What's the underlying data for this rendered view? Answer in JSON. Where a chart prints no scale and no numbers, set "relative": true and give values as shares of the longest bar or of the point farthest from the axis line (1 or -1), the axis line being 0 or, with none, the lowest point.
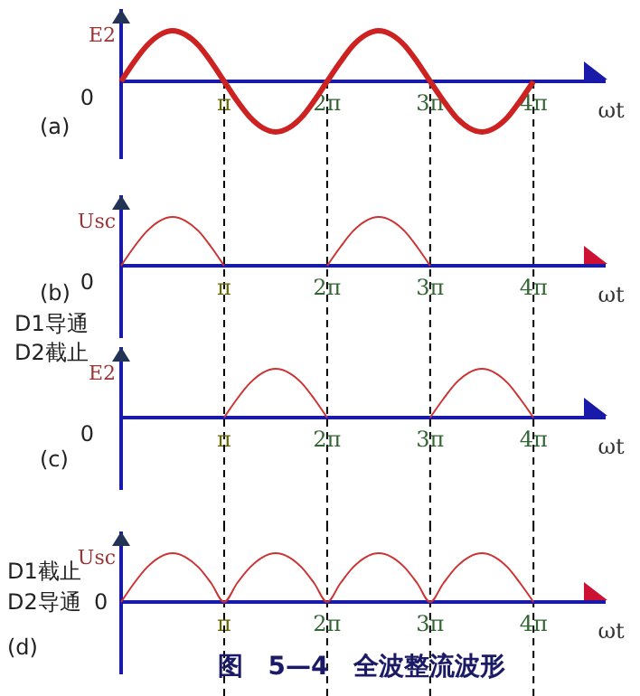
{
  "chart_data": [
    {
      "type": "line",
      "relative": true,
      "ylabel": "E2",
      "xlabel": "ωt",
      "xlim": [
        0,
        14.77
      ],
      "xticks": [
        {
          "value": 3.14,
          "label": "π"
        },
        {
          "value": 6.28,
          "label": "2π"
        },
        {
          "value": 9.42,
          "label": "3π"
        },
        {
          "value": 12.57,
          "label": "4π"
        }
      ],
      "x": [
        0,
        0.39,
        0.79,
        1.18,
        1.57,
        1.96,
        2.36,
        2.75,
        3.14,
        3.53,
        3.93,
        4.32,
        4.71,
        5.11,
        5.5,
        5.89,
        6.28,
        6.68,
        7.07,
        7.46,
        7.85,
        8.25,
        8.64,
        9.03,
        9.42,
        9.82,
        10.21,
        10.6,
        11.0,
        11.39,
        11.78,
        12.17,
        12.57
      ],
      "series": [
        {
          "color": "#cc2222",
          "values": [
            0,
            0.38,
            0.71,
            0.92,
            1,
            0.92,
            0.71,
            0.38,
            0,
            -0.38,
            -0.71,
            -0.92,
            -1,
            -0.92,
            -0.71,
            -0.38,
            0,
            0.38,
            0.71,
            0.92,
            1,
            0.92,
            0.71,
            0.38,
            0,
            -0.38,
            -0.71,
            -0.92,
            -1,
            -0.92,
            -0.71,
            -0.38,
            0
          ]
        }
      ],
      "annotations": [
        "0",
        "(a)"
      ],
      "ref_lines": [
        {
          "axis": "x",
          "value": 3.14,
          "line_style": "dashed"
        },
        {
          "axis": "x",
          "value": 6.28,
          "line_style": "dashed"
        },
        {
          "axis": "x",
          "value": 9.42,
          "line_style": "dashed"
        },
        {
          "axis": "x",
          "value": 12.57,
          "line_style": "dashed"
        }
      ]
    },
    {
      "type": "line",
      "relative": true,
      "ylabel": "Usc",
      "xlabel": "ωt",
      "xlim": [
        0,
        14.77
      ],
      "xticks": [
        {
          "value": 3.14,
          "label": "π"
        },
        {
          "value": 6.28,
          "label": "2π"
        },
        {
          "value": 9.42,
          "label": "3π"
        },
        {
          "value": 12.57,
          "label": "4π"
        }
      ],
      "series": [
        {
          "color": "#cc3333",
          "x": [
            0,
            0.39,
            0.79,
            1.18,
            1.57,
            1.96,
            2.36,
            2.75,
            3.14
          ],
          "values": [
            0,
            0.38,
            0.71,
            0.92,
            1,
            0.92,
            0.71,
            0.38,
            0
          ]
        },
        {
          "color": "#cc3333",
          "x": [
            6.28,
            6.68,
            7.07,
            7.46,
            7.85,
            8.25,
            8.64,
            9.03,
            9.42
          ],
          "values": [
            0,
            0.38,
            0.71,
            0.92,
            1,
            0.92,
            0.71,
            0.38,
            0
          ]
        }
      ],
      "annotations": [
        "0",
        "(b)",
        "D1导通",
        "D2截止"
      ],
      "ref_lines": [
        {
          "axis": "x",
          "value": 3.14,
          "line_style": "dashed"
        },
        {
          "axis": "x",
          "value": 6.28,
          "line_style": "dashed"
        },
        {
          "axis": "x",
          "value": 9.42,
          "line_style": "dashed"
        },
        {
          "axis": "x",
          "value": 12.57,
          "line_style": "dashed"
        }
      ]
    },
    {
      "type": "line",
      "relative": true,
      "ylabel": "E2",
      "xlabel": "ωt",
      "xlim": [
        0,
        14.77
      ],
      "xticks": [
        {
          "value": 3.14,
          "label": "π"
        },
        {
          "value": 6.28,
          "label": "2π"
        },
        {
          "value": 9.42,
          "label": "3π"
        },
        {
          "value": 12.57,
          "label": "4π"
        }
      ],
      "series": [
        {
          "color": "#cc3333",
          "x": [
            3.14,
            3.53,
            3.93,
            4.32,
            4.71,
            5.11,
            5.5,
            5.89,
            6.28
          ],
          "values": [
            0,
            0.38,
            0.71,
            0.92,
            1,
            0.92,
            0.71,
            0.38,
            0
          ]
        },
        {
          "color": "#cc3333",
          "x": [
            9.42,
            9.82,
            10.21,
            10.6,
            11.0,
            11.39,
            11.78,
            12.17,
            12.57
          ],
          "values": [
            0,
            0.38,
            0.71,
            0.92,
            1,
            0.92,
            0.71,
            0.38,
            0
          ]
        }
      ],
      "annotations": [
        "0",
        "(c)"
      ],
      "ref_lines": [
        {
          "axis": "x",
          "value": 3.14,
          "line_style": "dashed"
        },
        {
          "axis": "x",
          "value": 6.28,
          "line_style": "dashed"
        },
        {
          "axis": "x",
          "value": 9.42,
          "line_style": "dashed"
        },
        {
          "axis": "x",
          "value": 12.57,
          "line_style": "dashed"
        }
      ]
    },
    {
      "type": "line",
      "relative": true,
      "title": "图　5—4　全波整流波形",
      "ylabel": "Usc",
      "xlabel": "ωt",
      "xlim": [
        0,
        14.77
      ],
      "xticks": [
        {
          "value": 3.14,
          "label": "π"
        },
        {
          "value": 6.28,
          "label": "2π"
        },
        {
          "value": 9.42,
          "label": "3π"
        },
        {
          "value": 12.57,
          "label": "4π"
        }
      ],
      "x": [
        0,
        0.39,
        0.79,
        1.18,
        1.57,
        1.96,
        2.36,
        2.75,
        3.14,
        3.53,
        3.93,
        4.32,
        4.71,
        5.11,
        5.5,
        5.89,
        6.28,
        6.68,
        7.07,
        7.46,
        7.85,
        8.25,
        8.64,
        9.03,
        9.42,
        9.82,
        10.21,
        10.6,
        11.0,
        11.39,
        11.78,
        12.17,
        12.57
      ],
      "series": [
        {
          "color": "#cc3333",
          "values": [
            0,
            0.38,
            0.71,
            0.92,
            1,
            0.92,
            0.71,
            0.38,
            0,
            0.38,
            0.71,
            0.92,
            1,
            0.92,
            0.71,
            0.38,
            0,
            0.38,
            0.71,
            0.92,
            1,
            0.92,
            0.71,
            0.38,
            0,
            0.38,
            0.71,
            0.92,
            1,
            0.92,
            0.71,
            0.38,
            0
          ]
        }
      ],
      "annotations": [
        "D1截止",
        "D2导通",
        "0",
        "(d)"
      ],
      "ref_lines": [
        {
          "axis": "x",
          "value": 3.14,
          "line_style": "dashed"
        },
        {
          "axis": "x",
          "value": 6.28,
          "line_style": "dashed"
        },
        {
          "axis": "x",
          "value": 9.42,
          "line_style": "dashed"
        },
        {
          "axis": "x",
          "value": 12.57,
          "line_style": "dashed"
        }
      ]
    }
  ]
}
